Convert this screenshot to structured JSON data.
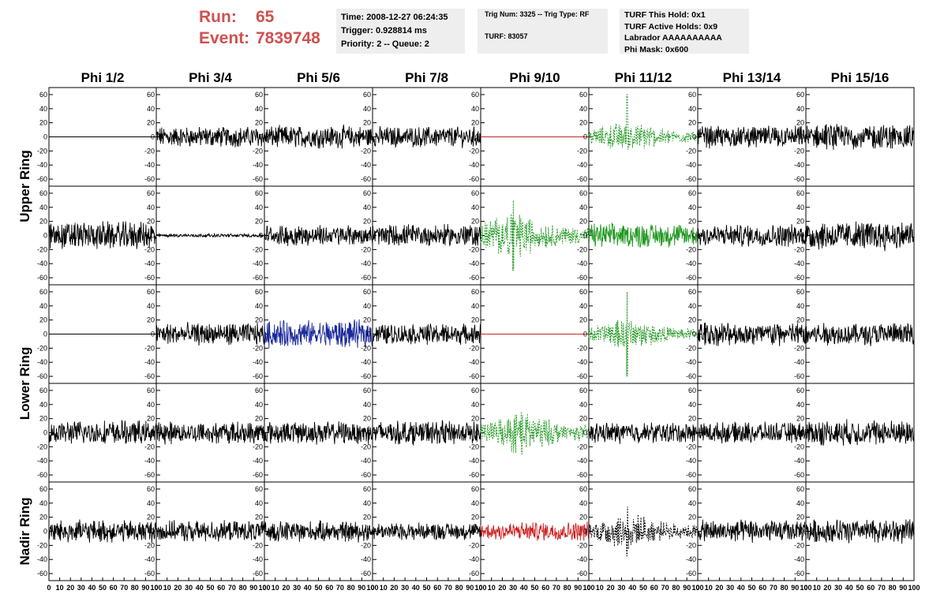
{
  "header": {
    "run_label": "Run:",
    "run_value": "65",
    "event_label": "Event:",
    "event_value": "7839748",
    "time_box": {
      "line1": "Time: 2008-12-27 06:24:35",
      "line2": "Trigger: 0.928814 ms",
      "line3": "Priority: 2 -- Queue: 2"
    },
    "trig_box": {
      "line1": "Trig Num: 3325 -- Trig Type: RF",
      "line2": "TURF: 83057"
    },
    "turf_box": {
      "line1": "TURF This Hold: 0x1",
      "line2": "TURF Active Holds: 0x9",
      "line3": "Labrador AAAAAAAAAA",
      "line4": "Phi Mask: 0x600"
    }
  },
  "chart_data": {
    "type": "line",
    "columns": [
      "Phi 1/2",
      "Phi 3/4",
      "Phi 5/6",
      "Phi 7/8",
      "Phi 9/10",
      "Phi 11/12",
      "Phi 13/14",
      "Phi 15/16"
    ],
    "row_groups": [
      {
        "label": "Upper Ring",
        "rows": 2
      },
      {
        "label": "Lower Ring",
        "rows": 2
      },
      {
        "label": "Nadir Ring",
        "rows": 1
      }
    ],
    "ylim": [
      -70,
      70
    ],
    "yticks": [
      -60,
      -40,
      -20,
      0,
      20,
      40,
      60
    ],
    "xlim": [
      0,
      100
    ],
    "xticks": [
      0,
      10,
      20,
      30,
      40,
      50,
      60,
      70,
      80,
      90,
      100
    ],
    "colors": {
      "black": "#000000",
      "red": "#cc2222",
      "green": "#229922",
      "blue": "#1a2a9a"
    },
    "panels": [
      [
        {
          "style": "flat",
          "color": "black",
          "amp": 0
        },
        {
          "style": "noise",
          "color": "black",
          "amp": 12
        },
        {
          "style": "noise",
          "color": "black",
          "amp": 13
        },
        {
          "style": "noise",
          "color": "black",
          "amp": 12
        },
        {
          "style": "flat",
          "color": "red",
          "amp": 0
        },
        {
          "style": "dashed-burst",
          "color": "green",
          "amp": 12,
          "spike": 60,
          "spike_x": 35
        },
        {
          "style": "noise",
          "color": "black",
          "amp": 13
        },
        {
          "style": "noise",
          "color": "black",
          "amp": 15
        }
      ],
      [
        {
          "style": "noise",
          "color": "black",
          "amp": 16
        },
        {
          "style": "noise",
          "color": "black",
          "amp": 2
        },
        {
          "style": "noise",
          "color": "black",
          "amp": 12
        },
        {
          "style": "noise",
          "color": "black",
          "amp": 13
        },
        {
          "style": "dashed-burst",
          "color": "green",
          "amp": 18,
          "spike": 50,
          "spike_x": 30
        },
        {
          "style": "noise",
          "color": "green",
          "amp": 14
        },
        {
          "style": "noise",
          "color": "black",
          "amp": 13
        },
        {
          "style": "noise",
          "color": "black",
          "amp": 17
        }
      ],
      [
        {
          "style": "flat",
          "color": "black",
          "amp": 0
        },
        {
          "style": "noise",
          "color": "black",
          "amp": 13
        },
        {
          "style": "noise",
          "color": "blue",
          "amp": 16
        },
        {
          "style": "noise",
          "color": "black",
          "amp": 12
        },
        {
          "style": "flat",
          "color": "red",
          "amp": 0
        },
        {
          "style": "dashed-burst",
          "color": "green",
          "amp": 12,
          "spike": 60,
          "spike_x": 35
        },
        {
          "style": "noise",
          "color": "black",
          "amp": 14
        },
        {
          "style": "noise",
          "color": "black",
          "amp": 13
        }
      ],
      [
        {
          "style": "noise",
          "color": "black",
          "amp": 14
        },
        {
          "style": "noise",
          "color": "black",
          "amp": 13
        },
        {
          "style": "noise",
          "color": "black",
          "amp": 13
        },
        {
          "style": "noise",
          "color": "black",
          "amp": 14
        },
        {
          "style": "dashed-burst",
          "color": "green",
          "amp": 16,
          "spike": 30,
          "spike_x": 38
        },
        {
          "style": "noise",
          "color": "black",
          "amp": 12
        },
        {
          "style": "noise",
          "color": "black",
          "amp": 12
        },
        {
          "style": "noise",
          "color": "black",
          "amp": 15
        }
      ],
      [
        {
          "style": "noise",
          "color": "black",
          "amp": 13
        },
        {
          "style": "noise",
          "color": "black",
          "amp": 12
        },
        {
          "style": "noise",
          "color": "black",
          "amp": 12
        },
        {
          "style": "noise",
          "color": "black",
          "amp": 10
        },
        {
          "style": "noise",
          "color": "red",
          "amp": 11
        },
        {
          "style": "dashed-burst",
          "color": "black",
          "amp": 14,
          "spike": 35,
          "spike_x": 35
        },
        {
          "style": "noise",
          "color": "black",
          "amp": 13
        },
        {
          "style": "noise",
          "color": "black",
          "amp": 14
        }
      ]
    ]
  }
}
